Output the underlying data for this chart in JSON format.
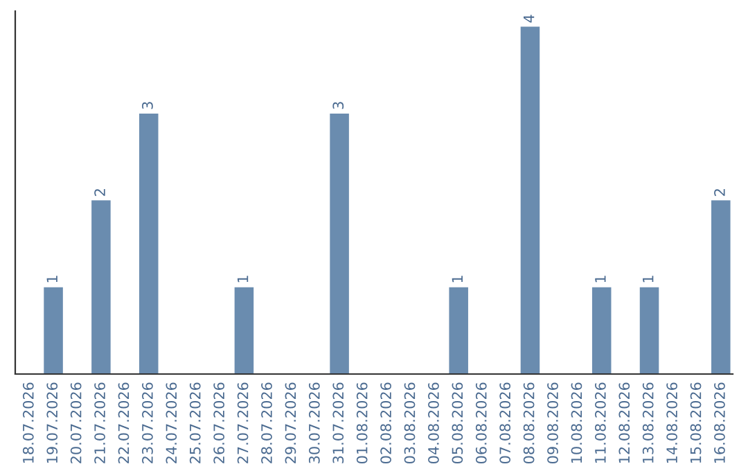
{
  "chart_data": {
    "type": "bar",
    "categories": [
      "18.07.2026",
      "19.07.2026",
      "20.07.2026",
      "21.07.2026",
      "22.07.2026",
      "23.07.2026",
      "24.07.2026",
      "25.07.2026",
      "26.07.2026",
      "27.07.2026",
      "28.07.2026",
      "29.07.2026",
      "30.07.2026",
      "31.07.2026",
      "01.08.2026",
      "02.08.2026",
      "03.08.2026",
      "04.08.2026",
      "05.08.2026",
      "06.08.2026",
      "07.08.2026",
      "08.08.2026",
      "09.08.2026",
      "10.08.2026",
      "11.08.2026",
      "12.08.2026",
      "13.08.2026",
      "14.08.2026",
      "15.08.2026",
      "16.08.2026"
    ],
    "values": [
      0,
      1,
      0,
      2,
      0,
      3,
      0,
      0,
      0,
      1,
      0,
      0,
      0,
      3,
      0,
      0,
      0,
      0,
      1,
      0,
      0,
      4,
      0,
      0,
      1,
      0,
      1,
      0,
      0,
      2
    ],
    "value_labels": [
      null,
      "1",
      null,
      "2",
      null,
      "3",
      null,
      null,
      null,
      "1",
      null,
      null,
      null,
      "3",
      null,
      null,
      null,
      null,
      "1",
      null,
      null,
      "4",
      null,
      null,
      "1",
      null,
      "1",
      null,
      null,
      "2"
    ],
    "color": "#6a8caf",
    "grid": false,
    "legend": false
  }
}
